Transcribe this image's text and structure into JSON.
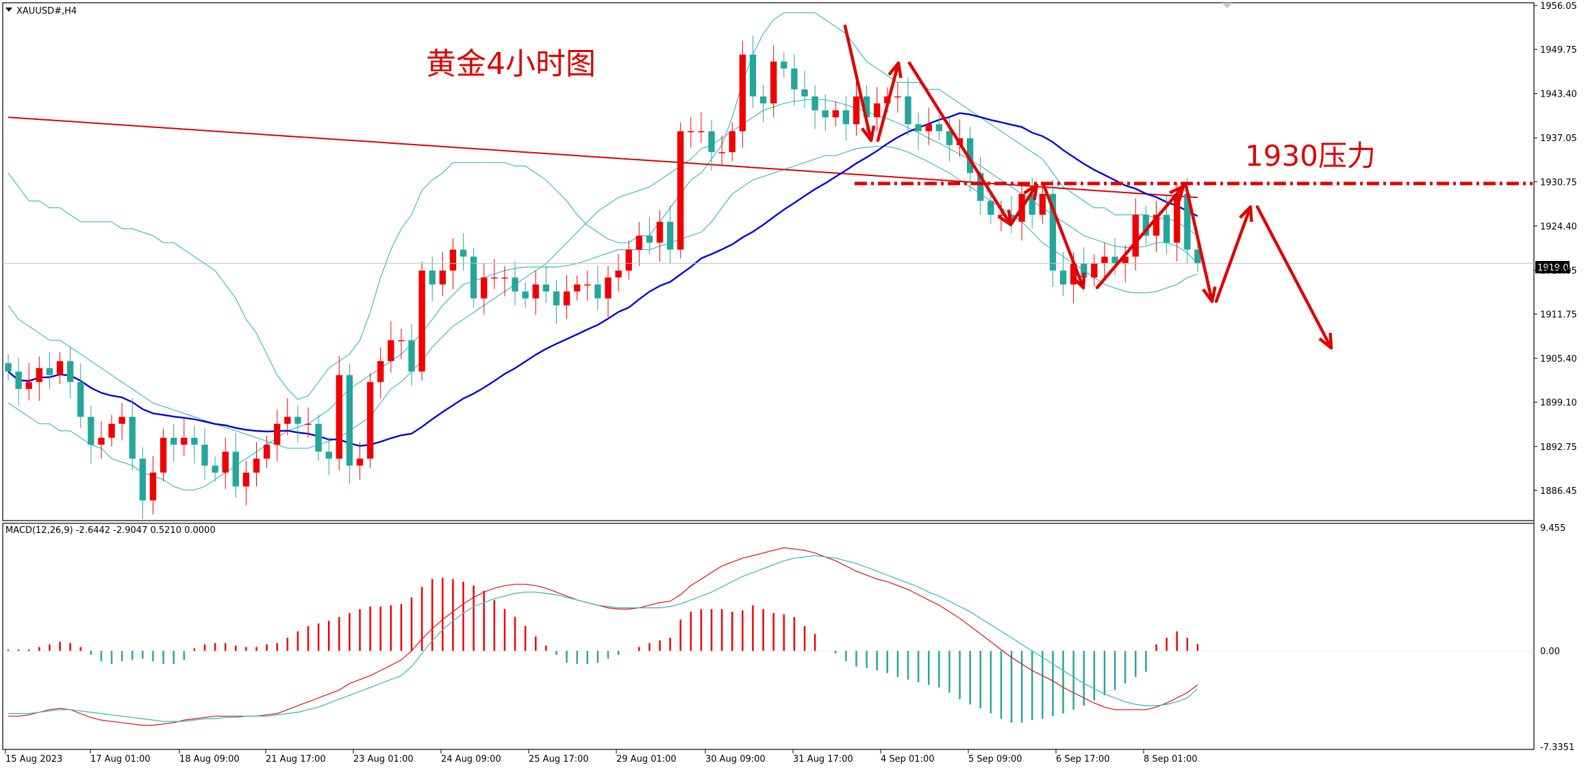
{
  "symbol_label": "XAUUSD#,H4",
  "annotation_title": "黄金4小时图",
  "resistance_label": "1930压力",
  "macd_label": "MACD(12,26,9) -2.6442 -2.9047 0.5210 0.0000",
  "current_price_tag": "1919.04",
  "colors": {
    "bull_candle": "#f00000",
    "bear_candle": "#26a69a",
    "ma_long": "#e00000",
    "ma_mid": "#0000dd",
    "bollinger": "#3fbcbc",
    "macd_line": "#e02020",
    "signal_line": "#3fbcbc",
    "annotation": "#e00000"
  },
  "chart_data": [
    {
      "type": "candlestick",
      "title": "XAUUSD#,H4",
      "ylim": [
        1882.5,
        1956.05
      ],
      "y_ticks": [
        "1956.05",
        "1949.75",
        "1943.40",
        "1937.05",
        "1930.75",
        "1924.40",
        "1918.05",
        "1911.75",
        "1905.40",
        "1899.10",
        "1892.75",
        "1886.45"
      ],
      "x_ticks": [
        "15 Aug 2023",
        "17 Aug 01:00",
        "18 Aug 09:00",
        "21 Aug 17:00",
        "23 Aug 01:00",
        "24 Aug 09:00",
        "25 Aug 17:00",
        "29 Aug 01:00",
        "30 Aug 09:00",
        "31 Aug 17:00",
        "4 Sep 01:00",
        "5 Sep 09:00",
        "6 Sep 17:00",
        "8 Sep 01:00"
      ],
      "resistance_level": 1930.5,
      "current_price": 1919.04,
      "close": [
        1903.5,
        1901,
        1902,
        1904,
        1903,
        1905,
        1902,
        1897,
        1893,
        1894,
        1896,
        1897,
        1891,
        1885,
        1889,
        1894,
        1893,
        1894,
        1893,
        1890,
        1889,
        1892,
        1887,
        1889,
        1891,
        1893,
        1896,
        1897,
        1896,
        1896,
        1892,
        1891,
        1903,
        1890,
        1891,
        1902,
        1905,
        1908,
        1908,
        1903.5,
        1918,
        1916,
        1918,
        1921,
        1920,
        1914,
        1917,
        1917,
        1917,
        1915,
        1914,
        1916,
        1915,
        1913,
        1915,
        1916,
        1916,
        1914,
        1917,
        1918,
        1921,
        1923,
        1922,
        1925,
        1921,
        1938,
        1938,
        1938,
        1935,
        1935,
        1938,
        1949,
        1943,
        1942,
        1948,
        1947,
        1944,
        1943,
        1941,
        1940,
        1941,
        1939,
        1943,
        1940,
        1942,
        1943,
        1943,
        1939,
        1938,
        1939,
        1938,
        1936,
        1937,
        1932,
        1928,
        1926,
        1926,
        1925,
        1929,
        1926,
        1929,
        1918,
        1916,
        1919,
        1917,
        1919,
        1920,
        1919,
        1920,
        1926,
        1923,
        1926,
        1922,
        1929,
        1921,
        1919.04
      ],
      "bollinger_upper": [
        1932,
        1930,
        1928,
        1928,
        1927,
        1927,
        1926,
        1925,
        1925,
        1925,
        1925,
        1924,
        1924,
        1923.5,
        1923,
        1922,
        1922,
        1921,
        1920,
        1919,
        1918,
        1916,
        1914,
        1911,
        1909,
        1906,
        1903,
        1901,
        1899.5,
        1900,
        1902,
        1904,
        1905,
        1906,
        1908,
        1912,
        1917,
        1921,
        1924,
        1926,
        1929.5,
        1931,
        1932,
        1933.5,
        1933.5,
        1933.5,
        1933.5,
        1933.5,
        1933.5,
        1933,
        1933,
        1932,
        1931,
        1929.5,
        1928,
        1926,
        1924.5,
        1923.5,
        1922.5,
        1922,
        1922,
        1923,
        1923,
        1925,
        1927,
        1929,
        1931,
        1932,
        1934,
        1936,
        1940,
        1945,
        1949,
        1952,
        1954,
        1955,
        1955,
        1955,
        1955,
        1954,
        1953,
        1952,
        1950,
        1948,
        1947,
        1946,
        1945,
        1945,
        1945,
        1944,
        1944,
        1943,
        1942,
        1941,
        1940,
        1939,
        1938,
        1937,
        1936,
        1935,
        1934,
        1932,
        1930,
        1929,
        1928,
        1927,
        1927,
        1926,
        1926,
        1926,
        1926,
        1925.5,
        1925.5,
        1925,
        1924,
        1923
      ],
      "bollinger_mid": [
        1913,
        1911,
        1910,
        1909,
        1908,
        1908,
        1907,
        1906,
        1905,
        1904,
        1903,
        1902,
        1901,
        1900,
        1899,
        1898.5,
        1898,
        1897.5,
        1897,
        1896.5,
        1896,
        1895.5,
        1895,
        1894.5,
        1894,
        1893.5,
        1893,
        1892.5,
        1892.5,
        1892.5,
        1893,
        1893.5,
        1894,
        1895,
        1896,
        1897,
        1899,
        1901,
        1902,
        1903.5,
        1905,
        1907,
        1908.5,
        1910,
        1911,
        1912,
        1913,
        1914,
        1915,
        1916,
        1917,
        1918,
        1919,
        1920.5,
        1922,
        1923.5,
        1925,
        1926.5,
        1927.5,
        1928.5,
        1929,
        1929.5,
        1930,
        1931,
        1932,
        1933,
        1934,
        1935.5,
        1936,
        1937,
        1938,
        1939,
        1940,
        1941,
        1941.5,
        1942,
        1942.3,
        1942.5,
        1942.6,
        1942.5,
        1942.2,
        1941.8,
        1941.3,
        1940.8,
        1940.3,
        1939.8,
        1939.2,
        1938.5,
        1937.8,
        1937,
        1936.3,
        1935.5,
        1934.7,
        1933.9,
        1933,
        1932,
        1931,
        1930,
        1929,
        1928,
        1927,
        1926,
        1925,
        1924,
        1923,
        1922.5,
        1922,
        1921.5,
        1921.3,
        1921.3,
        1921.5,
        1922,
        1922,
        1921.5,
        1920.5,
        1919
      ],
      "bollinger_lower": [
        1899,
        1898,
        1897,
        1896,
        1896,
        1895,
        1895,
        1894,
        1893,
        1892.5,
        1891,
        1890.5,
        1890,
        1889,
        1888.5,
        1888,
        1887,
        1886.5,
        1886.5,
        1887,
        1888,
        1889,
        1890,
        1891,
        1892,
        1893,
        1894,
        1895,
        1895.5,
        1896,
        1897,
        1898,
        1899.5,
        1901,
        1902,
        1903,
        1904,
        1905,
        1906,
        1907.5,
        1909,
        1911,
        1913,
        1914.5,
        1916,
        1916.5,
        1917,
        1917.5,
        1918,
        1918.3,
        1918.5,
        1918.5,
        1918.5,
        1918.5,
        1918.7,
        1919,
        1919.5,
        1920,
        1920.5,
        1921,
        1921,
        1921,
        1921,
        1921.5,
        1922,
        1922.5,
        1923,
        1923.5,
        1925,
        1927,
        1929,
        1930,
        1931,
        1931.5,
        1932,
        1932.5,
        1933,
        1933.5,
        1934,
        1934.5,
        1934.5,
        1935,
        1935.5,
        1935.7,
        1935.8,
        1935.8,
        1935.5,
        1935,
        1934.3,
        1933.6,
        1932.8,
        1932,
        1931,
        1930,
        1929,
        1928,
        1927,
        1926,
        1925,
        1923.5,
        1922,
        1921,
        1920,
        1919,
        1918,
        1917,
        1916,
        1915.5,
        1915,
        1914.8,
        1914.8,
        1915,
        1915.5,
        1916,
        1917,
        1917.5
      ]
    },
    {
      "type": "line",
      "title": "MACD(12,26,9) -2.6442 -2.9047 0.5210 0.0000",
      "ylim": [
        -7.3351,
        9.455
      ],
      "y_ticks": [
        "9.455",
        "0.00",
        "-7.3351"
      ],
      "x_ticks": [
        "15 Aug 2023",
        "17 Aug 01:00",
        "18 Aug 09:00",
        "21 Aug 17:00",
        "23 Aug 01:00",
        "24 Aug 09:00",
        "25 Aug 17:00",
        "29 Aug 01:00",
        "30 Aug 09:00",
        "31 Aug 17:00",
        "4 Sep 01:00",
        "5 Sep 09:00",
        "6 Sep 17:00",
        "8 Sep 01:00"
      ],
      "series": [
        {
          "values": [
            -5.0,
            -5.0,
            -4.9,
            -4.7,
            -4.5,
            -4.4,
            -4.5,
            -4.8,
            -5.1,
            -5.3,
            -5.4,
            -5.5,
            -5.6,
            -5.7,
            -5.7,
            -5.6,
            -5.5,
            -5.3,
            -5.2,
            -5.1,
            -5.0,
            -5.0,
            -5.0,
            -5.0,
            -5.0,
            -4.9,
            -4.8,
            -4.5,
            -4.2,
            -3.9,
            -3.6,
            -3.3,
            -3.0,
            -2.5,
            -2.2,
            -1.9,
            -1.5,
            -1.1,
            -0.7,
            0.0,
            0.9,
            1.7,
            2.4,
            3.0,
            3.6,
            4.1,
            4.5,
            4.8,
            5.0,
            5.1,
            5.1,
            5.0,
            4.8,
            4.5,
            4.2,
            3.9,
            3.7,
            3.5,
            3.3,
            3.2,
            3.2,
            3.3,
            3.5,
            3.7,
            3.8,
            4.3,
            5.0,
            5.5,
            6.0,
            6.5,
            6.8,
            7.1,
            7.3,
            7.5,
            7.7,
            7.9,
            7.8,
            7.7,
            7.5,
            7.2,
            6.9,
            6.5,
            6.1,
            5.8,
            5.5,
            5.3,
            5.0,
            4.7,
            4.3,
            3.9,
            3.5,
            3.0,
            2.5,
            1.9,
            1.3,
            0.7,
            0.1,
            -0.5,
            -1.0,
            -1.5,
            -1.9,
            -2.3,
            -2.8,
            -3.2,
            -3.6,
            -4.0,
            -4.3,
            -4.5,
            -4.5,
            -4.5,
            -4.5,
            -4.3,
            -4.0,
            -3.6,
            -3.2,
            -2.6
          ]
        },
        {
          "values": [
            -4.8,
            -4.8,
            -4.8,
            -4.7,
            -4.6,
            -4.5,
            -4.5,
            -4.6,
            -4.7,
            -4.8,
            -4.9,
            -5.0,
            -5.1,
            -5.2,
            -5.3,
            -5.4,
            -5.4,
            -5.4,
            -5.3,
            -5.2,
            -5.2,
            -5.1,
            -5.1,
            -5.0,
            -5.0,
            -5.0,
            -4.9,
            -4.8,
            -4.7,
            -4.5,
            -4.3,
            -4.0,
            -3.7,
            -3.4,
            -3.1,
            -2.8,
            -2.5,
            -2.2,
            -1.9,
            -1.2,
            -0.2,
            0.8,
            1.6,
            2.3,
            2.9,
            3.4,
            3.7,
            4.0,
            4.2,
            4.4,
            4.5,
            4.5,
            4.4,
            4.3,
            4.1,
            3.9,
            3.7,
            3.5,
            3.4,
            3.3,
            3.3,
            3.3,
            3.3,
            3.3,
            3.4,
            3.6,
            3.9,
            4.2,
            4.5,
            4.9,
            5.3,
            5.7,
            6.0,
            6.3,
            6.6,
            6.9,
            7.1,
            7.2,
            7.3,
            7.2,
            7.1,
            6.9,
            6.7,
            6.4,
            6.1,
            5.8,
            5.5,
            5.2,
            4.9,
            4.5,
            4.2,
            3.8,
            3.4,
            3.0,
            2.5,
            2.0,
            1.5,
            1.0,
            0.5,
            0.0,
            -0.5,
            -1.0,
            -1.5,
            -2.0,
            -2.5,
            -2.9,
            -3.3,
            -3.6,
            -3.9,
            -4.1,
            -4.2,
            -4.2,
            -4.1,
            -3.9,
            -3.6,
            -2.9
          ]
        },
        {
          "values": [
            0.1,
            0.1,
            0.1,
            0.3,
            0.5,
            0.7,
            0.6,
            0.3,
            -0.3,
            -0.8,
            -1.0,
            -0.8,
            -0.7,
            -0.6,
            -0.8,
            -1.0,
            -1.0,
            -0.7,
            0.2,
            0.5,
            0.6,
            0.6,
            0.4,
            0.3,
            0.3,
            0.5,
            0.6,
            1.0,
            1.5,
            1.9,
            2.1,
            2.3,
            2.6,
            2.9,
            3.2,
            3.4,
            3.4,
            3.5,
            3.6,
            4.1,
            4.9,
            5.5,
            5.6,
            5.5,
            5.3,
            5.0,
            4.6,
            3.9,
            3.2,
            2.6,
            1.9,
            1.1,
            0.4,
            -0.3,
            -0.9,
            -1.0,
            -1.0,
            -0.9,
            -0.6,
            -0.3,
            0.0,
            0.3,
            0.6,
            0.8,
            1.0,
            2.4,
            3.0,
            3.2,
            3.2,
            3.2,
            3.0,
            3.1,
            3.5,
            3.2,
            2.9,
            2.8,
            2.6,
            1.9,
            1.3,
            0.0,
            -0.2,
            -0.8,
            -1.2,
            -1.3,
            -1.5,
            -1.7,
            -2.0,
            -2.2,
            -2.4,
            -2.6,
            -2.8,
            -3.2,
            -3.7,
            -4.1,
            -4.4,
            -4.8,
            -5.2,
            -5.5,
            -5.5,
            -5.3,
            -5.2,
            -5.0,
            -4.8,
            -4.5,
            -4.2,
            -3.8,
            -3.4,
            -3.0,
            -2.5,
            -2.0,
            -1.6,
            0.5,
            1.0,
            1.5,
            1.0,
            0.52
          ]
        }
      ]
    }
  ]
}
